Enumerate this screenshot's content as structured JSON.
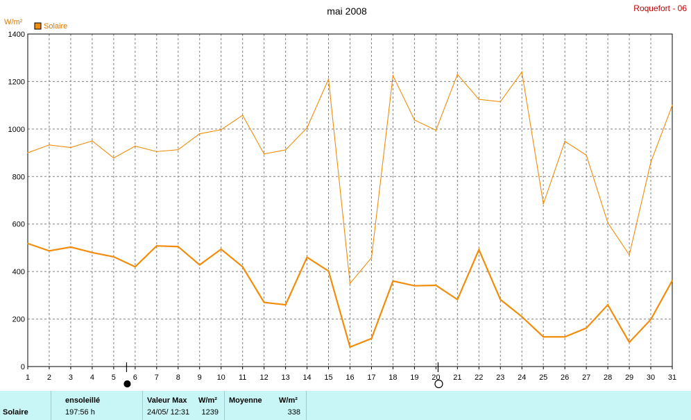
{
  "title": "mai 2008",
  "station": "Roquefort - 06",
  "colors": {
    "line": "#f28c0a",
    "legend_box": "#f28c0a",
    "grid": "#808080",
    "panel_bg": "#c8f5f5",
    "station_text": "#c00000"
  },
  "chart_data": {
    "type": "line",
    "title": "mai 2008",
    "ylabel": "W/m²",
    "legend": [
      "Solaire"
    ],
    "legend_position": "top-left",
    "grid": true,
    "x": [
      1,
      2,
      3,
      4,
      5,
      6,
      7,
      8,
      9,
      10,
      11,
      12,
      13,
      14,
      15,
      16,
      17,
      18,
      19,
      20,
      21,
      22,
      23,
      24,
      25,
      26,
      27,
      28,
      29,
      30,
      31
    ],
    "xlim": [
      1,
      31
    ],
    "ylim": [
      0,
      1400
    ],
    "yticks": [
      0,
      200,
      400,
      600,
      800,
      1000,
      1200,
      1400
    ],
    "series": [
      {
        "name": "Solaire",
        "role": "max",
        "values": [
          900,
          933,
          922,
          950,
          878,
          928,
          905,
          913,
          980,
          997,
          1058,
          895,
          912,
          1005,
          1210,
          350,
          458,
          1225,
          1038,
          995,
          1230,
          1125,
          1115,
          1240,
          685,
          948,
          890,
          605,
          470,
          860,
          1100
        ]
      },
      {
        "name": "Solaire",
        "role": "moyenne",
        "values": [
          518,
          487,
          503,
          480,
          462,
          420,
          508,
          505,
          428,
          494,
          420,
          270,
          260,
          460,
          402,
          82,
          118,
          360,
          340,
          342,
          282,
          492,
          282,
          210,
          125,
          125,
          162,
          260,
          102,
          198,
          362
        ]
      }
    ],
    "moon_markers": [
      {
        "day": 5.6,
        "phase": "new"
      },
      {
        "day": 20.1,
        "phase": "full"
      }
    ]
  },
  "summary": {
    "row_label": "Solaire",
    "sunshine_label": "ensoleillé",
    "sunshine_value": "197:56 h",
    "max_label": "Valeur Max",
    "max_unit": "W/m²",
    "max_datetime": "24/05/  12:31",
    "max_value": "1239",
    "mean_label": "Moyenne",
    "mean_unit": "W/m²",
    "mean_value": "338"
  }
}
